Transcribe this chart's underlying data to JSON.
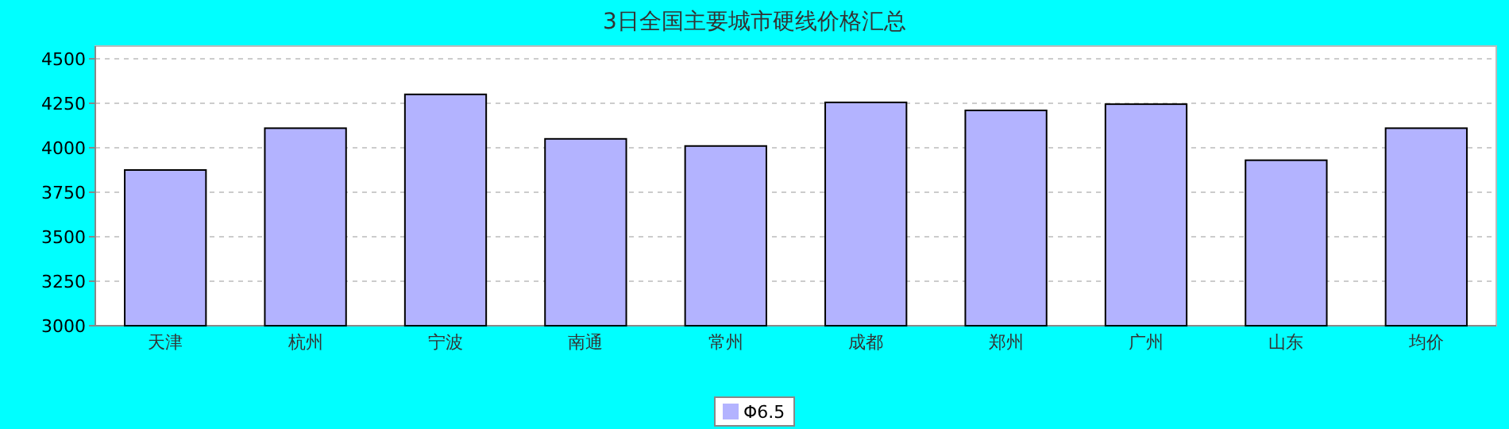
{
  "chart_data": {
    "type": "bar",
    "title": "3日全国主要城市硬线价格汇总",
    "categories": [
      "天津",
      "杭州",
      "宁波",
      "南通",
      "常州",
      "成都",
      "郑州",
      "广州",
      "山东",
      "均价"
    ],
    "series": [
      {
        "name": "Φ6.5",
        "color": "#b3b3ff",
        "values": [
          3875,
          4110,
          4300,
          4050,
          4010,
          4255,
          4210,
          4245,
          3930,
          4110
        ]
      }
    ],
    "ylim": [
      3000,
      4500
    ],
    "yticks": [
      3000,
      3250,
      3500,
      3750,
      4000,
      4250,
      4500
    ],
    "grid": "y",
    "legend": "bottom"
  }
}
